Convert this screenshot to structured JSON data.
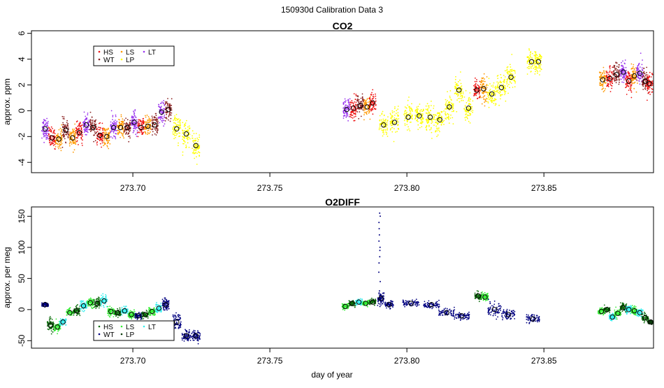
{
  "page_title": "150930d   Calibration Data 3",
  "colors": {
    "HS": "#ee1111",
    "LS": "#ff9900",
    "LT": "#9933ee",
    "WT": "#8b2222",
    "LP": "#ffff00",
    "O2_HS": "#0a6a0a",
    "O2_LS": "#33ee33",
    "O2_LT": "#33eeee",
    "O2_WT": "#000080",
    "O2_LP": "#0a3a0a",
    "mean_marker": "#000000"
  },
  "chart_data": [
    {
      "type": "scatter",
      "title": "CO2",
      "xlabel": "",
      "ylabel": "approx. ppm",
      "xlim": [
        273.663,
        273.89
      ],
      "ylim": [
        -4.8,
        6.2
      ],
      "x_ticks": [
        273.7,
        273.75,
        273.8,
        273.85
      ],
      "x_tick_labels": [
        "273.70",
        "273.75",
        "273.80",
        "273.85"
      ],
      "y_ticks": [
        -4,
        -2,
        0,
        2,
        4,
        6
      ],
      "y_tick_labels": [
        "-4",
        "-2",
        "0",
        "2",
        "4",
        "6"
      ],
      "grid": false,
      "legend": {
        "placement": "top-left",
        "entries": [
          {
            "label": "HS",
            "color_key": "HS"
          },
          {
            "label": "LS",
            "color_key": "LS"
          },
          {
            "label": "LT",
            "color_key": "LT"
          },
          {
            "label": "WT",
            "color_key": "WT"
          },
          {
            "label": "LP",
            "color_key": "LP"
          }
        ]
      },
      "clusters": [
        {
          "x": 273.668,
          "y": -1.4,
          "sd": 0.8,
          "w": 0.0012,
          "color_key": "LT"
        },
        {
          "x": 273.6705,
          "y": -2.1,
          "sd": 0.7,
          "w": 0.0012,
          "color_key": "HS"
        },
        {
          "x": 273.673,
          "y": -2.2,
          "sd": 0.7,
          "w": 0.0012,
          "color_key": "LS"
        },
        {
          "x": 273.6755,
          "y": -1.5,
          "sd": 0.7,
          "w": 0.0012,
          "color_key": "WT"
        },
        {
          "x": 273.678,
          "y": -2.1,
          "sd": 0.7,
          "w": 0.0012,
          "color_key": "LS"
        },
        {
          "x": 273.6805,
          "y": -1.7,
          "sd": 0.7,
          "w": 0.0012,
          "color_key": "HS"
        },
        {
          "x": 273.683,
          "y": -1.1,
          "sd": 0.75,
          "w": 0.0012,
          "color_key": "LT"
        },
        {
          "x": 273.6855,
          "y": -1.3,
          "sd": 0.7,
          "w": 0.0012,
          "color_key": "WT"
        },
        {
          "x": 273.688,
          "y": -1.9,
          "sd": 0.7,
          "w": 0.0012,
          "color_key": "HS"
        },
        {
          "x": 273.6905,
          "y": -2.0,
          "sd": 0.7,
          "w": 0.0012,
          "color_key": "LS"
        },
        {
          "x": 273.693,
          "y": -1.3,
          "sd": 0.75,
          "w": 0.0012,
          "color_key": "LT"
        },
        {
          "x": 273.6955,
          "y": -1.3,
          "sd": 0.7,
          "w": 0.0012,
          "color_key": "LS"
        },
        {
          "x": 273.698,
          "y": -1.3,
          "sd": 0.7,
          "w": 0.0012,
          "color_key": "WT"
        },
        {
          "x": 273.7005,
          "y": -0.9,
          "sd": 0.75,
          "w": 0.0012,
          "color_key": "LT"
        },
        {
          "x": 273.703,
          "y": -1.3,
          "sd": 0.7,
          "w": 0.0012,
          "color_key": "HS"
        },
        {
          "x": 273.7055,
          "y": -1.2,
          "sd": 0.7,
          "w": 0.0012,
          "color_key": "LS"
        },
        {
          "x": 273.708,
          "y": -1.1,
          "sd": 0.7,
          "w": 0.0012,
          "color_key": "WT"
        },
        {
          "x": 273.7105,
          "y": -0.1,
          "sd": 0.75,
          "w": 0.0012,
          "color_key": "LT"
        },
        {
          "x": 273.713,
          "y": 0.1,
          "sd": 0.7,
          "w": 0.0012,
          "color_key": "WT"
        },
        {
          "x": 273.716,
          "y": -1.4,
          "sd": 0.9,
          "w": 0.0014,
          "color_key": "LP"
        },
        {
          "x": 273.7195,
          "y": -1.8,
          "sd": 0.9,
          "w": 0.0014,
          "color_key": "LP"
        },
        {
          "x": 273.723,
          "y": -2.7,
          "sd": 0.9,
          "w": 0.0014,
          "color_key": "LP"
        },
        {
          "x": 273.778,
          "y": 0.1,
          "sd": 0.75,
          "w": 0.0012,
          "color_key": "LT"
        },
        {
          "x": 273.7805,
          "y": 0.2,
          "sd": 0.75,
          "w": 0.0012,
          "color_key": "HS"
        },
        {
          "x": 273.783,
          "y": 0.4,
          "sd": 0.75,
          "w": 0.0012,
          "color_key": "WT"
        },
        {
          "x": 273.7855,
          "y": 0.3,
          "sd": 0.75,
          "w": 0.0012,
          "color_key": "LS"
        },
        {
          "x": 273.7875,
          "y": 0.6,
          "sd": 0.75,
          "w": 0.0012,
          "color_key": "HS"
        },
        {
          "x": 273.7915,
          "y": -1.1,
          "sd": 0.9,
          "w": 0.0016,
          "color_key": "LP"
        },
        {
          "x": 273.7955,
          "y": -0.9,
          "sd": 0.9,
          "w": 0.0016,
          "color_key": "LP"
        },
        {
          "x": 273.8005,
          "y": -0.5,
          "sd": 0.9,
          "w": 0.0016,
          "color_key": "LP"
        },
        {
          "x": 273.8045,
          "y": -0.4,
          "sd": 0.9,
          "w": 0.0016,
          "color_key": "LP"
        },
        {
          "x": 273.8085,
          "y": -0.5,
          "sd": 0.9,
          "w": 0.0016,
          "color_key": "LP"
        },
        {
          "x": 273.812,
          "y": -0.7,
          "sd": 0.9,
          "w": 0.0016,
          "color_key": "LP"
        },
        {
          "x": 273.8155,
          "y": 0.3,
          "sd": 0.9,
          "w": 0.0016,
          "color_key": "LP"
        },
        {
          "x": 273.819,
          "y": 1.6,
          "sd": 0.9,
          "w": 0.0016,
          "color_key": "LP"
        },
        {
          "x": 273.8225,
          "y": 0.2,
          "sd": 0.9,
          "w": 0.0016,
          "color_key": "LP"
        },
        {
          "x": 273.8255,
          "y": 1.6,
          "sd": 0.8,
          "w": 0.0012,
          "color_key": "HS"
        },
        {
          "x": 273.828,
          "y": 1.7,
          "sd": 0.8,
          "w": 0.0012,
          "color_key": "LS"
        },
        {
          "x": 273.831,
          "y": 1.3,
          "sd": 0.9,
          "w": 0.0016,
          "color_key": "LP"
        },
        {
          "x": 273.8345,
          "y": 1.8,
          "sd": 0.9,
          "w": 0.0016,
          "color_key": "LP"
        },
        {
          "x": 273.838,
          "y": 2.6,
          "sd": 0.9,
          "w": 0.0016,
          "color_key": "LP"
        },
        {
          "x": 273.8455,
          "y": 3.8,
          "sd": 0.8,
          "w": 0.0016,
          "color_key": "LP"
        },
        {
          "x": 273.848,
          "y": 3.8,
          "sd": 0.8,
          "w": 0.0012,
          "color_key": "LP"
        },
        {
          "x": 273.8715,
          "y": 2.4,
          "sd": 0.7,
          "w": 0.0012,
          "color_key": "LS"
        },
        {
          "x": 273.874,
          "y": 2.5,
          "sd": 0.75,
          "w": 0.0012,
          "color_key": "HS"
        },
        {
          "x": 273.8765,
          "y": 2.8,
          "sd": 0.75,
          "w": 0.0012,
          "color_key": "WT"
        },
        {
          "x": 273.879,
          "y": 3.0,
          "sd": 0.75,
          "w": 0.0012,
          "color_key": "LT"
        },
        {
          "x": 273.881,
          "y": 2.3,
          "sd": 0.75,
          "w": 0.0012,
          "color_key": "HS"
        },
        {
          "x": 273.883,
          "y": 2.7,
          "sd": 0.75,
          "w": 0.0012,
          "color_key": "LS"
        },
        {
          "x": 273.885,
          "y": 2.9,
          "sd": 0.75,
          "w": 0.0012,
          "color_key": "LT"
        },
        {
          "x": 273.887,
          "y": 2.3,
          "sd": 0.75,
          "w": 0.0012,
          "color_key": "WT"
        },
        {
          "x": 273.8885,
          "y": 2.1,
          "sd": 0.75,
          "w": 0.0012,
          "color_key": "HS"
        }
      ]
    },
    {
      "type": "scatter",
      "title": "O2DIFF",
      "xlabel": "day of year",
      "ylabel": "approx. per meg",
      "xlim": [
        273.663,
        273.89
      ],
      "ylim": [
        -62,
        165
      ],
      "x_ticks": [
        273.7,
        273.75,
        273.8,
        273.85
      ],
      "x_tick_labels": [
        "273.70",
        "273.75",
        "273.80",
        "273.85"
      ],
      "y_ticks": [
        -50,
        0,
        50,
        100,
        150
      ],
      "y_tick_labels": [
        "-50",
        "0",
        "50",
        "100",
        "150"
      ],
      "grid": false,
      "legend": {
        "placement": "bottom-left",
        "entries": [
          {
            "label": "HS",
            "color_key": "O2_HS"
          },
          {
            "label": "LS",
            "color_key": "O2_LS"
          },
          {
            "label": "LT",
            "color_key": "O2_LT"
          },
          {
            "label": "WT",
            "color_key": "O2_WT"
          },
          {
            "label": "LP",
            "color_key": "O2_LP"
          }
        ]
      },
      "clusters": [
        {
          "x": 273.668,
          "y": 8,
          "sd": 3,
          "w": 0.0012,
          "color_key": "O2_WT"
        },
        {
          "x": 273.67,
          "y": -25,
          "sd": 10,
          "w": 0.0012,
          "color_key": "O2_HS"
        },
        {
          "x": 273.6725,
          "y": -28,
          "sd": 7,
          "w": 0.0012,
          "color_key": "O2_LS"
        },
        {
          "x": 273.6745,
          "y": -20,
          "sd": 6,
          "w": 0.0012,
          "color_key": "O2_LT"
        },
        {
          "x": 273.677,
          "y": -5,
          "sd": 6,
          "w": 0.0012,
          "color_key": "O2_LS"
        },
        {
          "x": 273.6795,
          "y": -2,
          "sd": 6,
          "w": 0.0012,
          "color_key": "O2_HS"
        },
        {
          "x": 273.682,
          "y": 6,
          "sd": 7,
          "w": 0.0012,
          "color_key": "O2_LT"
        },
        {
          "x": 273.6845,
          "y": 11,
          "sd": 7,
          "w": 0.0012,
          "color_key": "O2_LS"
        },
        {
          "x": 273.687,
          "y": 10,
          "sd": 7,
          "w": 0.0012,
          "color_key": "O2_HS"
        },
        {
          "x": 273.6895,
          "y": 14,
          "sd": 8,
          "w": 0.0012,
          "color_key": "O2_LT"
        },
        {
          "x": 273.692,
          "y": -3,
          "sd": 6,
          "w": 0.0012,
          "color_key": "O2_LS"
        },
        {
          "x": 273.6945,
          "y": -5,
          "sd": 5,
          "w": 0.0012,
          "color_key": "O2_HS"
        },
        {
          "x": 273.697,
          "y": -2,
          "sd": 5,
          "w": 0.0012,
          "color_key": "O2_LT"
        },
        {
          "x": 273.6995,
          "y": -8,
          "sd": 5,
          "w": 0.0012,
          "color_key": "O2_LS"
        },
        {
          "x": 273.702,
          "y": -10,
          "sd": 5,
          "w": 0.0012,
          "color_key": "O2_WT"
        },
        {
          "x": 273.7045,
          "y": -8,
          "sd": 5,
          "w": 0.0012,
          "color_key": "O2_HS"
        },
        {
          "x": 273.707,
          "y": -3,
          "sd": 5,
          "w": 0.0012,
          "color_key": "O2_LS"
        },
        {
          "x": 273.7095,
          "y": 2,
          "sd": 6,
          "w": 0.0012,
          "color_key": "O2_LT"
        },
        {
          "x": 273.712,
          "y": 8,
          "sd": 10,
          "w": 0.0012,
          "color_key": "O2_WT"
        },
        {
          "x": 273.716,
          "y": -20,
          "sd": 12,
          "w": 0.0016,
          "color_key": "O2_WT"
        },
        {
          "x": 273.7195,
          "y": -42,
          "sd": 8,
          "w": 0.0016,
          "color_key": "O2_WT"
        },
        {
          "x": 273.723,
          "y": -42,
          "sd": 8,
          "w": 0.0016,
          "color_key": "O2_WT"
        },
        {
          "x": 273.7775,
          "y": 5,
          "sd": 4,
          "w": 0.0012,
          "color_key": "O2_LS"
        },
        {
          "x": 273.78,
          "y": 10,
          "sd": 4,
          "w": 0.0012,
          "color_key": "O2_HS"
        },
        {
          "x": 273.7825,
          "y": 12,
          "sd": 4,
          "w": 0.0012,
          "color_key": "O2_LT"
        },
        {
          "x": 273.785,
          "y": 10,
          "sd": 4,
          "w": 0.0012,
          "color_key": "O2_LS"
        },
        {
          "x": 273.7875,
          "y": 12,
          "sd": 4,
          "w": 0.0012,
          "color_key": "O2_HS"
        },
        {
          "x": 273.7905,
          "y": 18,
          "sd": 8,
          "w": 0.0012,
          "color_key": "O2_WT"
        },
        {
          "x": 273.7935,
          "y": 8,
          "sd": 5,
          "w": 0.0016,
          "color_key": "O2_WT"
        },
        {
          "x": 273.8015,
          "y": 10,
          "sd": 5,
          "w": 0.003,
          "color_key": "O2_WT"
        },
        {
          "x": 273.809,
          "y": 8,
          "sd": 5,
          "w": 0.003,
          "color_key": "O2_WT"
        },
        {
          "x": 273.8145,
          "y": -5,
          "sd": 6,
          "w": 0.003,
          "color_key": "O2_WT"
        },
        {
          "x": 273.82,
          "y": -10,
          "sd": 6,
          "w": 0.003,
          "color_key": "O2_WT"
        },
        {
          "x": 273.826,
          "y": 22,
          "sd": 6,
          "w": 0.0012,
          "color_key": "O2_HS"
        },
        {
          "x": 273.8285,
          "y": 20,
          "sd": 6,
          "w": 0.0012,
          "color_key": "O2_LS"
        },
        {
          "x": 273.832,
          "y": 0,
          "sd": 10,
          "w": 0.0024,
          "color_key": "O2_WT"
        },
        {
          "x": 273.837,
          "y": -8,
          "sd": 8,
          "w": 0.0024,
          "color_key": "O2_WT"
        },
        {
          "x": 273.846,
          "y": -15,
          "sd": 6,
          "w": 0.0024,
          "color_key": "O2_WT"
        },
        {
          "x": 273.871,
          "y": -3,
          "sd": 4,
          "w": 0.0012,
          "color_key": "O2_LS"
        },
        {
          "x": 273.873,
          "y": 0,
          "sd": 4,
          "w": 0.0012,
          "color_key": "O2_HS"
        },
        {
          "x": 273.875,
          "y": -12,
          "sd": 5,
          "w": 0.0012,
          "color_key": "O2_LT"
        },
        {
          "x": 273.877,
          "y": -6,
          "sd": 5,
          "w": 0.0012,
          "color_key": "O2_LS"
        },
        {
          "x": 273.879,
          "y": 3,
          "sd": 6,
          "w": 0.0012,
          "color_key": "O2_HS"
        },
        {
          "x": 273.881,
          "y": 0,
          "sd": 6,
          "w": 0.0012,
          "color_key": "O2_LT"
        },
        {
          "x": 273.883,
          "y": -2,
          "sd": 6,
          "w": 0.0012,
          "color_key": "O2_LS"
        },
        {
          "x": 273.885,
          "y": -5,
          "sd": 6,
          "w": 0.0012,
          "color_key": "O2_LT"
        },
        {
          "x": 273.887,
          "y": -13,
          "sd": 5,
          "w": 0.0012,
          "color_key": "O2_HS"
        },
        {
          "x": 273.889,
          "y": -20,
          "sd": 3,
          "w": 0.0012,
          "color_key": "O2_LP"
        }
      ],
      "spike": {
        "x": 273.79,
        "y_values": [
          5,
          15,
          30,
          45,
          60,
          75,
          85,
          95,
          100,
          110,
          120,
          130,
          140,
          150,
          155
        ]
      }
    }
  ]
}
